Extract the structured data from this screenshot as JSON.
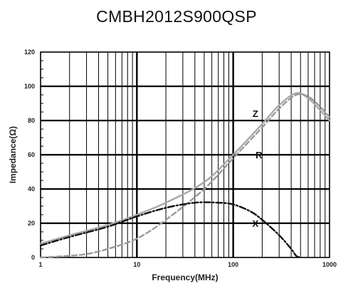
{
  "chart_data": {
    "type": "line",
    "title": "CMBH2012S900QSP",
    "xlabel": "Frequency(MHz)",
    "ylabel": "Impedance(Ω)",
    "xscale": "log",
    "xlim": [
      1,
      1000
    ],
    "ylim": [
      0,
      120
    ],
    "x_ticks": [
      "1",
      "10",
      "100",
      "1000"
    ],
    "y_ticks": [
      "0",
      "20",
      "40",
      "60",
      "80",
      "100",
      "120"
    ],
    "grid": true,
    "series": [
      {
        "name": "Z",
        "color": "#a8a8a8",
        "style": "solid",
        "x": [
          1,
          2,
          5,
          10,
          20,
          50,
          100,
          200,
          300,
          450,
          600,
          800,
          1000
        ],
        "y": [
          8,
          13,
          19,
          25,
          32,
          44,
          60,
          78,
          89,
          96,
          93,
          86,
          80
        ]
      },
      {
        "name": "R",
        "color": "#9a9a9a",
        "style": "dashed",
        "x": [
          1,
          2,
          3,
          5,
          10,
          20,
          50,
          100,
          200,
          300,
          450,
          600,
          800,
          1000
        ],
        "y": [
          0,
          1,
          2,
          5,
          11,
          22,
          40,
          58,
          76,
          87,
          95,
          94,
          88,
          82
        ]
      },
      {
        "name": "X",
        "color": "#111111",
        "style": "dashdot",
        "x": [
          1,
          2,
          5,
          10,
          20,
          40,
          70,
          100,
          150,
          200,
          300,
          400,
          450,
          500
        ],
        "y": [
          7,
          12,
          18,
          24,
          29,
          32,
          32,
          31,
          27,
          22,
          13,
          5,
          1,
          0
        ]
      }
    ]
  }
}
